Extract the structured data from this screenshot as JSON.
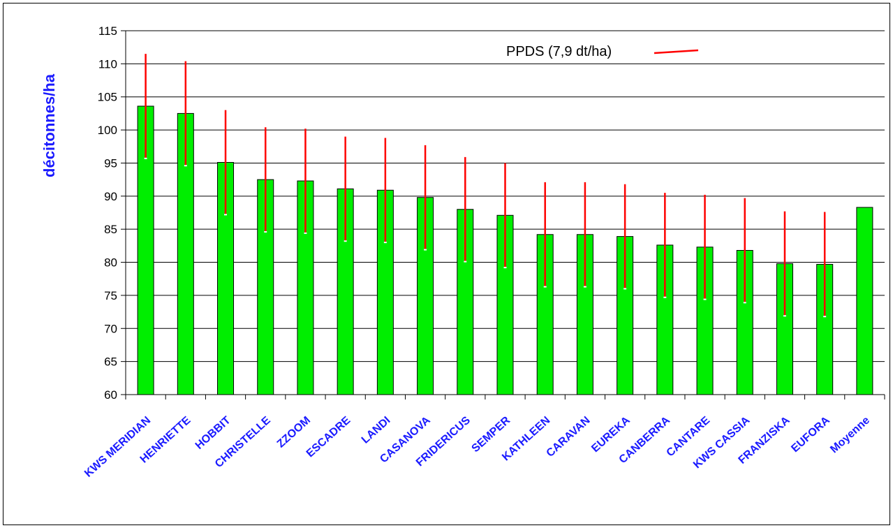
{
  "chart_data": {
    "type": "bar",
    "categories": [
      "KWS MERIDIAN",
      "HENRIETTE",
      "HOBBIT",
      "CHRISTELLE",
      "ZZOOM",
      "ESCADRE",
      "LANDI",
      "CASANOVA",
      "FRIDERICUS",
      "SEMPER",
      "KATHLEEN",
      "CARAVAN",
      "EUREKA",
      "CANBERRA",
      "CANTARE",
      "KWS CASSIA",
      "FRANZISKA",
      "EUFORA",
      "Moyenne"
    ],
    "values": [
      103.6,
      102.5,
      95.1,
      92.5,
      92.3,
      91.1,
      90.9,
      89.8,
      88.0,
      87.1,
      84.2,
      84.2,
      83.9,
      82.6,
      82.3,
      81.8,
      79.8,
      79.7,
      88.3
    ],
    "error_bars": [
      true,
      true,
      true,
      true,
      true,
      true,
      true,
      true,
      true,
      true,
      true,
      true,
      true,
      true,
      true,
      true,
      true,
      true,
      false
    ],
    "ppds": 7.9,
    "ylabel": "décitonnes/ha",
    "ylim": [
      60,
      115
    ],
    "yticks": [
      60,
      65,
      70,
      75,
      80,
      85,
      90,
      95,
      100,
      105,
      110,
      115
    ],
    "legend": "PPDS (7,9 dt/ha)",
    "legend_position": "top-right",
    "grid": true,
    "colors": {
      "bar": "#00ee00",
      "error": "#ff0000",
      "label": "#1a1aff"
    }
  }
}
